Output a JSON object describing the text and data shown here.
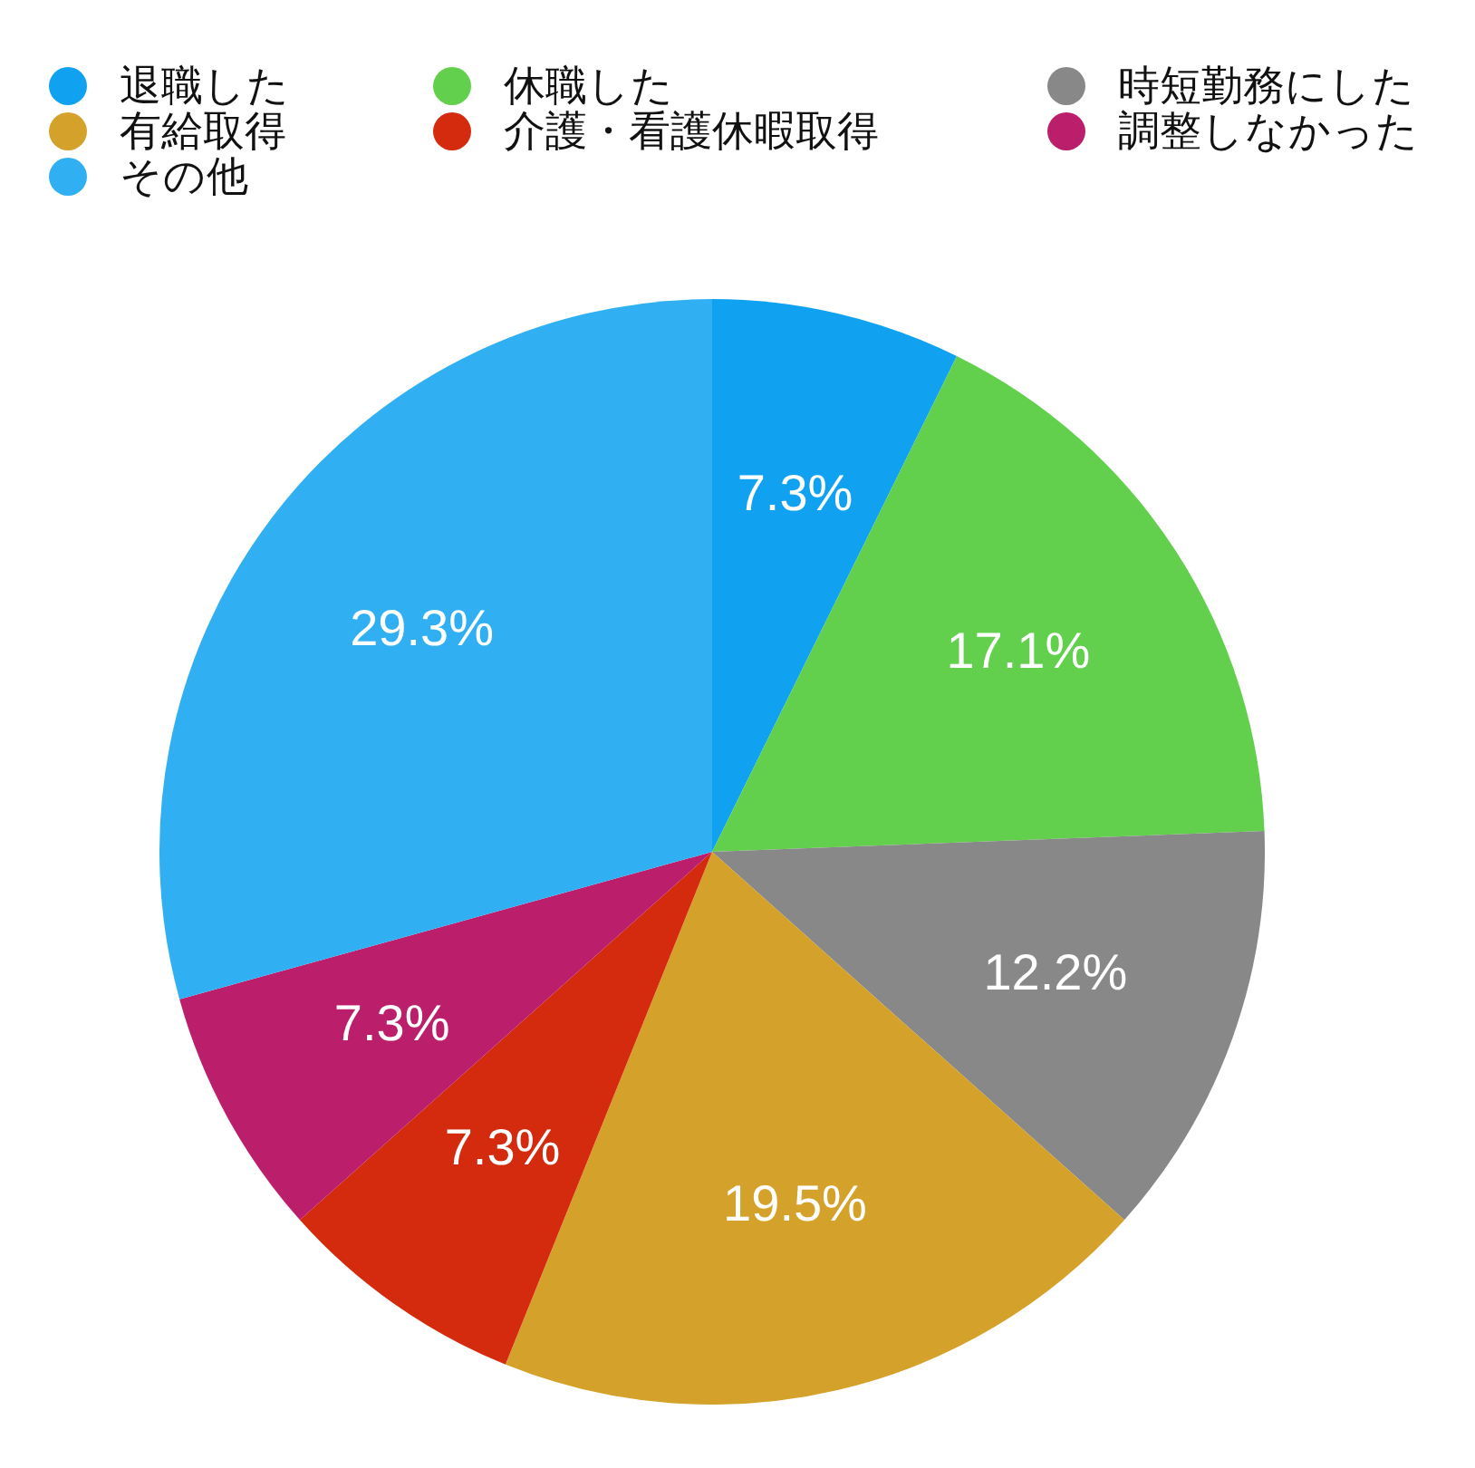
{
  "chart_data": {
    "type": "pie",
    "categories": [
      "退職した",
      "休職した",
      "時短勤務にした",
      "有給取得",
      "介護・看護休暇取得",
      "調整しなかった",
      "その他"
    ],
    "values": [
      7.3,
      17.1,
      12.2,
      19.5,
      7.3,
      7.3,
      29.3
    ],
    "colors": [
      "#10a2f0",
      "#62cf4d",
      "#888888",
      "#d4a22a",
      "#d42a0e",
      "#bb1f6c",
      "#30b0f2"
    ],
    "value_labels": [
      "7.3%",
      "17.1%",
      "12.2%",
      "19.5%",
      "7.3%",
      "7.3%",
      "29.3%"
    ],
    "legend": "top left"
  }
}
